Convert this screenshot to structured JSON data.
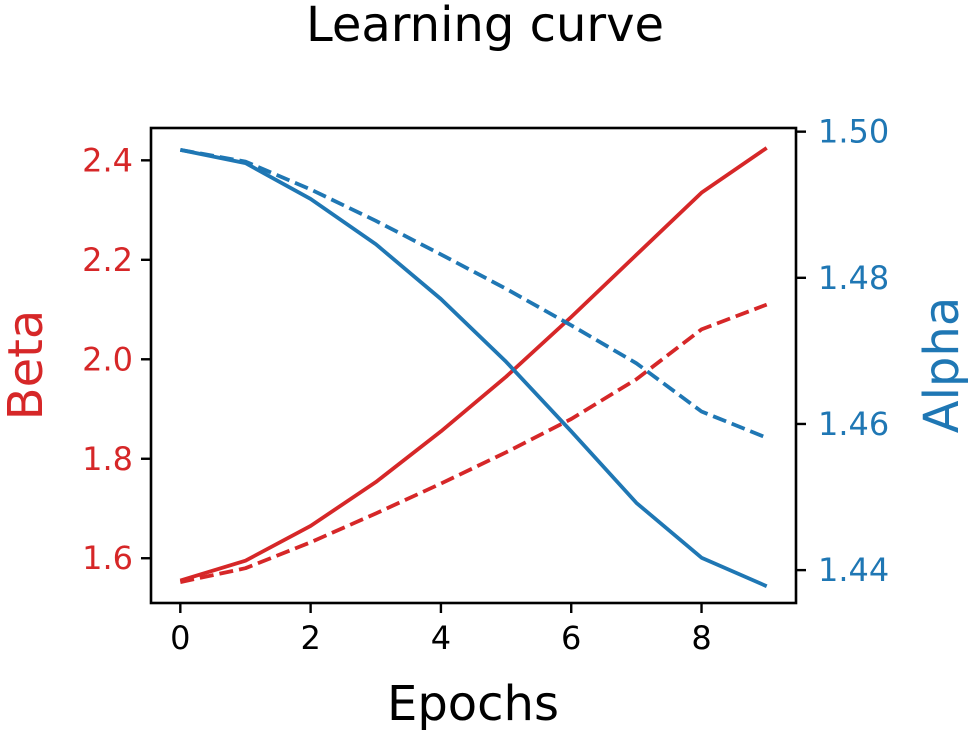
{
  "chart_data": {
    "type": "line",
    "title": "Learning curve",
    "xlabel": "Epochs",
    "x": [
      0,
      1,
      2,
      3,
      4,
      5,
      6,
      7,
      8,
      9
    ],
    "xlim": [
      -0.45,
      9.45
    ],
    "xticks": [
      0,
      2,
      4,
      6,
      8
    ],
    "left_axis": {
      "label": "Beta",
      "color": "#d62728",
      "ylim": [
        1.51,
        2.465
      ],
      "ticks": [
        1.6,
        1.8,
        2.0,
        2.2,
        2.4
      ],
      "tick_labels": [
        "1.6",
        "1.8",
        "2.0",
        "2.2",
        "2.4"
      ]
    },
    "right_axis": {
      "label": "Alpha",
      "color": "#1f77b4",
      "ylim": [
        1.4355,
        1.5005
      ],
      "ticks": [
        1.44,
        1.46,
        1.48,
        1.5
      ],
      "tick_labels": [
        "1.44",
        "1.46",
        "1.48",
        "1.50"
      ]
    },
    "series": [
      {
        "axis": "left",
        "style": "solid",
        "color": "#d62728",
        "values": [
          1.555,
          1.595,
          1.665,
          1.753,
          1.855,
          1.965,
          2.085,
          2.21,
          2.335,
          2.425
        ]
      },
      {
        "axis": "left",
        "style": "dashed",
        "color": "#d62728",
        "values": [
          1.552,
          1.58,
          1.632,
          1.69,
          1.75,
          1.813,
          1.88,
          1.96,
          2.06,
          2.11
        ]
      },
      {
        "axis": "right",
        "style": "solid",
        "color": "#1f77b4",
        "values": [
          1.4975,
          1.4957,
          1.4908,
          1.4846,
          1.4771,
          1.4685,
          1.459,
          1.4492,
          1.4417,
          1.4378
        ]
      },
      {
        "axis": "right",
        "style": "dashed",
        "color": "#1f77b4",
        "values": [
          1.4975,
          1.4959,
          1.4921,
          1.4878,
          1.4832,
          1.4785,
          1.4735,
          1.4683,
          1.4617,
          1.4581
        ]
      }
    ],
    "grid": false,
    "legend": "none"
  }
}
